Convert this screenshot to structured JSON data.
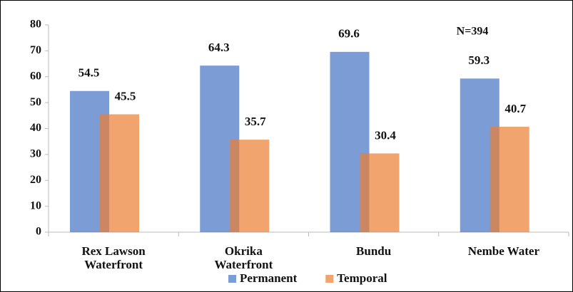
{
  "chart_data": {
    "type": "bar",
    "categories": [
      "Rex Lawson Waterfront",
      "Okrika Waterfront",
      "Bundu",
      "Nembe Water"
    ],
    "series": [
      {
        "name": "Permanent",
        "color": "#4472c4",
        "values": [
          54.5,
          64.3,
          69.6,
          59.3
        ]
      },
      {
        "name": "Temporal",
        "color": "#ed7d31",
        "values": [
          45.5,
          35.7,
          30.4,
          40.7
        ]
      }
    ],
    "ylim": [
      0,
      80
    ],
    "yticks": [
      0,
      10,
      20,
      30,
      40,
      50,
      60,
      70,
      80
    ],
    "annotation": "N=394"
  }
}
